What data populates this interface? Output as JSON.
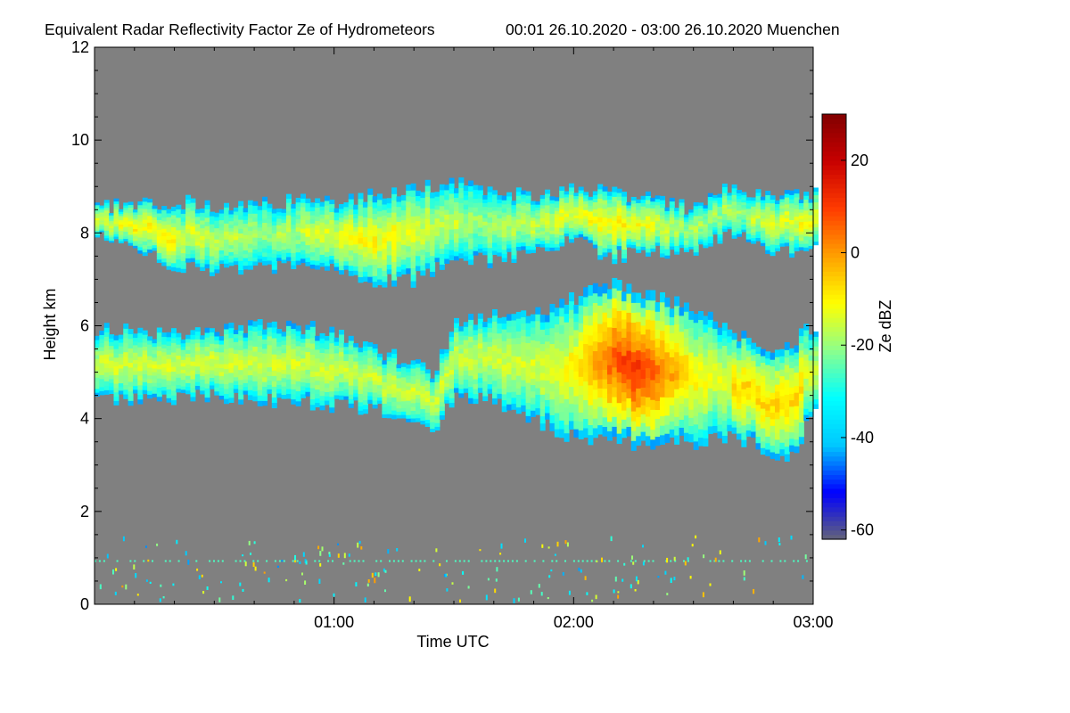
{
  "chart_data": {
    "type": "heatmap",
    "title": "Equivalent Radar Reflectivity Factor Ze of Hydrometeors",
    "time_range_label": "00:01 26.10.2020 - 03:00 26.10.2020 Muenchen",
    "xlabel": "Time UTC",
    "ylabel": "Height km",
    "colorbar_label": "Ze dBZ",
    "x_ticks": [
      "01:00",
      "02:00",
      "03:00"
    ],
    "x_tick_values": [
      60,
      120,
      180
    ],
    "xlim": [
      0,
      180
    ],
    "y_ticks": [
      "0",
      "2",
      "4",
      "6",
      "8",
      "10",
      "12"
    ],
    "y_tick_values": [
      0,
      2,
      4,
      6,
      8,
      10,
      12
    ],
    "ylim": [
      0,
      12
    ],
    "colorbar_ticks": [
      "-60",
      "-40",
      "-20",
      "0",
      "20"
    ],
    "colorbar_tick_values": [
      -60,
      -40,
      -20,
      0,
      20
    ],
    "colorbar_range": [
      -62,
      30
    ],
    "background_color": "#808080",
    "colormap": [
      "#646478",
      "#0000ff",
      "#00c8ff",
      "#00ffff",
      "#8cff8c",
      "#ffff00",
      "#ffa000",
      "#ff3c00",
      "#c80000",
      "#820000"
    ],
    "layers": [
      {
        "name": "upper",
        "time": [
          0,
          10,
          20,
          30,
          40,
          50,
          60,
          70,
          80,
          90,
          100,
          110,
          120,
          130,
          140,
          150,
          160,
          170,
          180
        ],
        "top": [
          8.6,
          8.6,
          8.7,
          8.6,
          8.6,
          8.7,
          8.7,
          8.8,
          9.0,
          9.1,
          8.9,
          8.8,
          8.9,
          8.9,
          8.7,
          8.5,
          9.0,
          8.7,
          8.9
        ],
        "base": [
          8.0,
          7.7,
          7.3,
          7.2,
          7.3,
          7.3,
          7.2,
          7.0,
          7.0,
          7.5,
          7.4,
          7.6,
          7.8,
          7.5,
          7.6,
          7.6,
          8.0,
          7.5,
          7.8
        ],
        "peak_dbz": -12
      },
      {
        "name": "lower",
        "time": [
          0,
          10,
          20,
          30,
          40,
          50,
          60,
          70,
          80,
          85,
          90,
          100,
          110,
          120,
          130,
          140,
          150,
          160,
          170,
          175,
          180
        ],
        "top": [
          5.9,
          5.9,
          5.8,
          5.9,
          6.0,
          6.0,
          5.9,
          5.5,
          5.2,
          5.0,
          6.0,
          6.2,
          6.3,
          6.6,
          6.9,
          6.6,
          6.4,
          5.8,
          5.5,
          5.7,
          6.0
        ],
        "base": [
          4.5,
          4.4,
          4.4,
          4.5,
          4.4,
          4.4,
          4.3,
          4.2,
          4.0,
          3.8,
          4.5,
          4.4,
          4.0,
          3.6,
          3.5,
          3.4,
          3.5,
          3.6,
          3.3,
          3.2,
          4.2
        ],
        "peak_dbz": 10
      }
    ],
    "near_ground_clutter_km": [
      0,
      2
    ],
    "grid": false,
    "legend": "colorbar-right"
  }
}
